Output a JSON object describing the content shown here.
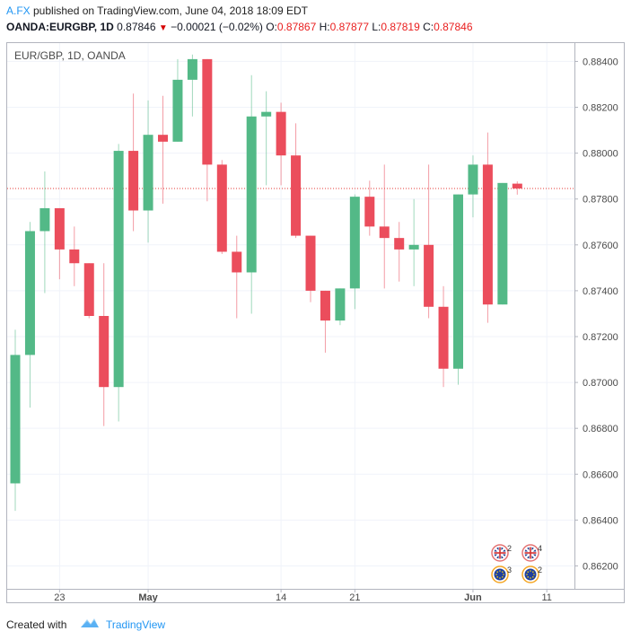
{
  "header": {
    "author": "A.FX",
    "published_text": " published on TradingView.com, June 04, 2018 18:09 EDT",
    "symbol": "OANDA:EURGBP, 1D",
    "last": "0.87846",
    "change": "−0.00021 (−0.02%)",
    "o_label": "O:",
    "o_val": "0.87867",
    "h_label": "H:",
    "h_val": "0.87877",
    "l_label": "L:",
    "l_val": "0.87819",
    "c_label": "C:",
    "c_val": "0.87846"
  },
  "footer": {
    "created_with": "Created with",
    "brand": "TradingView"
  },
  "colors": {
    "up": "#53b987",
    "down": "#eb4d5c",
    "grid": "#f0f3fa",
    "last_price_line": "#e53935"
  },
  "chart_data": {
    "type": "candlestick",
    "title": "EUR/GBP, 1D, OANDA",
    "y_range": [
      0.861,
      0.8848
    ],
    "y_ticks": [
      "0.86200",
      "0.86400",
      "0.86600",
      "0.86800",
      "0.87000",
      "0.87200",
      "0.87400",
      "0.87600",
      "0.87800",
      "0.88000",
      "0.88200",
      "0.88400"
    ],
    "x_ticks": [
      {
        "label": "23",
        "index": 3
      },
      {
        "label": "May",
        "index": 9
      },
      {
        "label": "14",
        "index": 18
      },
      {
        "label": "21",
        "index": 23
      },
      {
        "label": "Jun",
        "index": 31
      },
      {
        "label": "11",
        "index": 36
      }
    ],
    "last_price": 0.87846,
    "candles": [
      {
        "o": 0.8656,
        "h": 0.8723,
        "l": 0.8644,
        "c": 0.8712
      },
      {
        "o": 0.8712,
        "h": 0.877,
        "l": 0.8689,
        "c": 0.8766
      },
      {
        "o": 0.8766,
        "h": 0.8792,
        "l": 0.8739,
        "c": 0.8776
      },
      {
        "o": 0.8776,
        "h": 0.8776,
        "l": 0.8745,
        "c": 0.8758
      },
      {
        "o": 0.8758,
        "h": 0.8768,
        "l": 0.8742,
        "c": 0.8752
      },
      {
        "o": 0.8752,
        "h": 0.8752,
        "l": 0.8728,
        "c": 0.8729
      },
      {
        "o": 0.8729,
        "h": 0.8752,
        "l": 0.8681,
        "c": 0.8698
      },
      {
        "o": 0.8698,
        "h": 0.8804,
        "l": 0.8683,
        "c": 0.8801
      },
      {
        "o": 0.8801,
        "h": 0.8826,
        "l": 0.8766,
        "c": 0.8775
      },
      {
        "o": 0.8775,
        "h": 0.8823,
        "l": 0.8761,
        "c": 0.8808
      },
      {
        "o": 0.8808,
        "h": 0.8825,
        "l": 0.8778,
        "c": 0.8805
      },
      {
        "o": 0.8805,
        "h": 0.8841,
        "l": 0.8805,
        "c": 0.8832
      },
      {
        "o": 0.8832,
        "h": 0.8843,
        "l": 0.8816,
        "c": 0.8841
      },
      {
        "o": 0.8841,
        "h": 0.8841,
        "l": 0.8779,
        "c": 0.8795
      },
      {
        "o": 0.8795,
        "h": 0.8797,
        "l": 0.8756,
        "c": 0.8757
      },
      {
        "o": 0.8757,
        "h": 0.8764,
        "l": 0.8728,
        "c": 0.8748
      },
      {
        "o": 0.8748,
        "h": 0.8834,
        "l": 0.873,
        "c": 0.8816
      },
      {
        "o": 0.8816,
        "h": 0.8827,
        "l": 0.8786,
        "c": 0.8818
      },
      {
        "o": 0.8818,
        "h": 0.8822,
        "l": 0.8786,
        "c": 0.8799
      },
      {
        "o": 0.8799,
        "h": 0.8813,
        "l": 0.8763,
        "c": 0.8764
      },
      {
        "o": 0.8764,
        "h": 0.8764,
        "l": 0.8735,
        "c": 0.874
      },
      {
        "o": 0.874,
        "h": 0.874,
        "l": 0.8713,
        "c": 0.8727
      },
      {
        "o": 0.8727,
        "h": 0.8741,
        "l": 0.8725,
        "c": 0.8741
      },
      {
        "o": 0.8741,
        "h": 0.8782,
        "l": 0.8732,
        "c": 0.8781
      },
      {
        "o": 0.8781,
        "h": 0.8788,
        "l": 0.8764,
        "c": 0.8768
      },
      {
        "o": 0.8768,
        "h": 0.8795,
        "l": 0.8741,
        "c": 0.8763
      },
      {
        "o": 0.8763,
        "h": 0.877,
        "l": 0.8744,
        "c": 0.8758
      },
      {
        "o": 0.8758,
        "h": 0.878,
        "l": 0.8742,
        "c": 0.876
      },
      {
        "o": 0.876,
        "h": 0.8795,
        "l": 0.8728,
        "c": 0.8733
      },
      {
        "o": 0.8733,
        "h": 0.8742,
        "l": 0.8698,
        "c": 0.8706
      },
      {
        "o": 0.8706,
        "h": 0.8782,
        "l": 0.8699,
        "c": 0.8782
      },
      {
        "o": 0.8782,
        "h": 0.8799,
        "l": 0.8772,
        "c": 0.8795
      },
      {
        "o": 0.8795,
        "h": 0.8809,
        "l": 0.8726,
        "c": 0.8734
      },
      {
        "o": 0.8734,
        "h": 0.8787,
        "l": 0.8734,
        "c": 0.8787
      },
      {
        "o": 0.87867,
        "h": 0.87877,
        "l": 0.87819,
        "c": 0.87846
      }
    ],
    "event_badges": [
      {
        "flag": "uk",
        "count": "2"
      },
      {
        "flag": "uk",
        "count": "4"
      },
      {
        "flag": "eu",
        "count": "3"
      },
      {
        "flag": "eu",
        "count": "2"
      }
    ]
  }
}
